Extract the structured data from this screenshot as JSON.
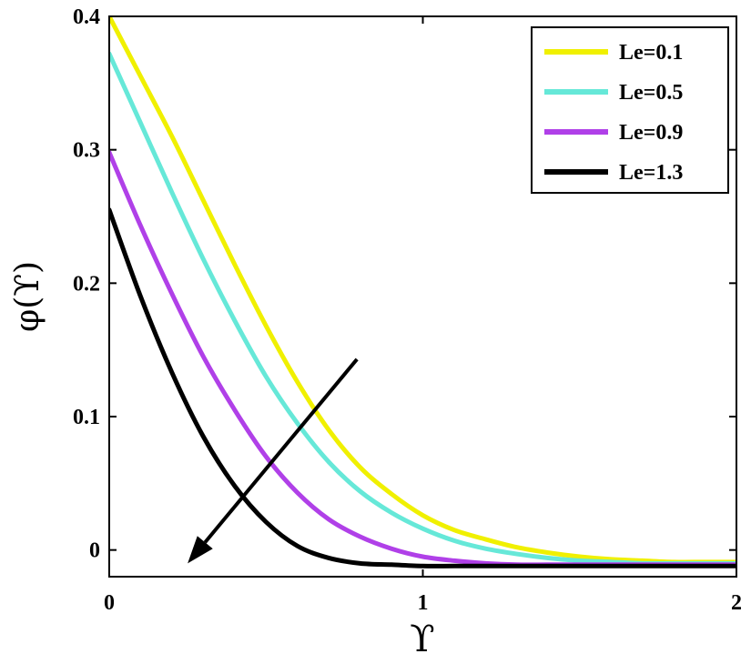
{
  "chart_data": {
    "type": "line",
    "title": "",
    "xlabel": "ϒ",
    "ylabel": "φ(ϒ)",
    "xlim": [
      0,
      2
    ],
    "ylim": [
      -0.02,
      0.4
    ],
    "xticks": [
      0,
      1,
      2
    ],
    "xtick_labels": [
      "0",
      "1",
      "2"
    ],
    "yticks": [
      0,
      0.1,
      0.2,
      0.3,
      0.4
    ],
    "ytick_labels": [
      "0",
      "0.1",
      "0.2",
      "0.3",
      "0.4"
    ],
    "grid": false,
    "legend_position": "top-right",
    "x": [
      0,
      0.1,
      0.2,
      0.3,
      0.4,
      0.5,
      0.6,
      0.7,
      0.8,
      0.9,
      1.0,
      1.1,
      1.2,
      1.3,
      1.4,
      1.5,
      1.6,
      1.7,
      1.8,
      1.9,
      2.0
    ],
    "series": [
      {
        "name": "Le=0.1",
        "color": "#f0f000",
        "values": [
          0.4,
          0.355,
          0.31,
          0.262,
          0.214,
          0.168,
          0.126,
          0.09,
          0.062,
          0.042,
          0.026,
          0.015,
          0.008,
          0.002,
          -0.002,
          -0.005,
          -0.007,
          -0.008,
          -0.009,
          -0.009,
          -0.009
        ]
      },
      {
        "name": "Le=0.5",
        "color": "#66e8d8",
        "values": [
          0.372,
          0.32,
          0.268,
          0.218,
          0.172,
          0.13,
          0.095,
          0.066,
          0.044,
          0.028,
          0.016,
          0.007,
          0.001,
          -0.003,
          -0.006,
          -0.008,
          -0.009,
          -0.01,
          -0.01,
          -0.01,
          -0.01
        ]
      },
      {
        "name": "Le=0.9",
        "color": "#b040e8",
        "values": [
          0.298,
          0.243,
          0.192,
          0.145,
          0.105,
          0.07,
          0.043,
          0.023,
          0.01,
          0.001,
          -0.005,
          -0.008,
          -0.01,
          -0.011,
          -0.011,
          -0.011,
          -0.011,
          -0.011,
          -0.011,
          -0.011,
          -0.011
        ]
      },
      {
        "name": "Le=1.3",
        "color": "#000000",
        "values": [
          0.255,
          0.19,
          0.133,
          0.085,
          0.048,
          0.021,
          0.003,
          -0.006,
          -0.01,
          -0.011,
          -0.012,
          -0.012,
          -0.012,
          -0.012,
          -0.012,
          -0.012,
          -0.012,
          -0.012,
          -0.012,
          -0.012,
          -0.012
        ]
      }
    ],
    "annotations": [
      {
        "type": "arrow",
        "from": [
          0.79,
          0.143
        ],
        "to": [
          0.25,
          -0.01
        ]
      }
    ]
  }
}
